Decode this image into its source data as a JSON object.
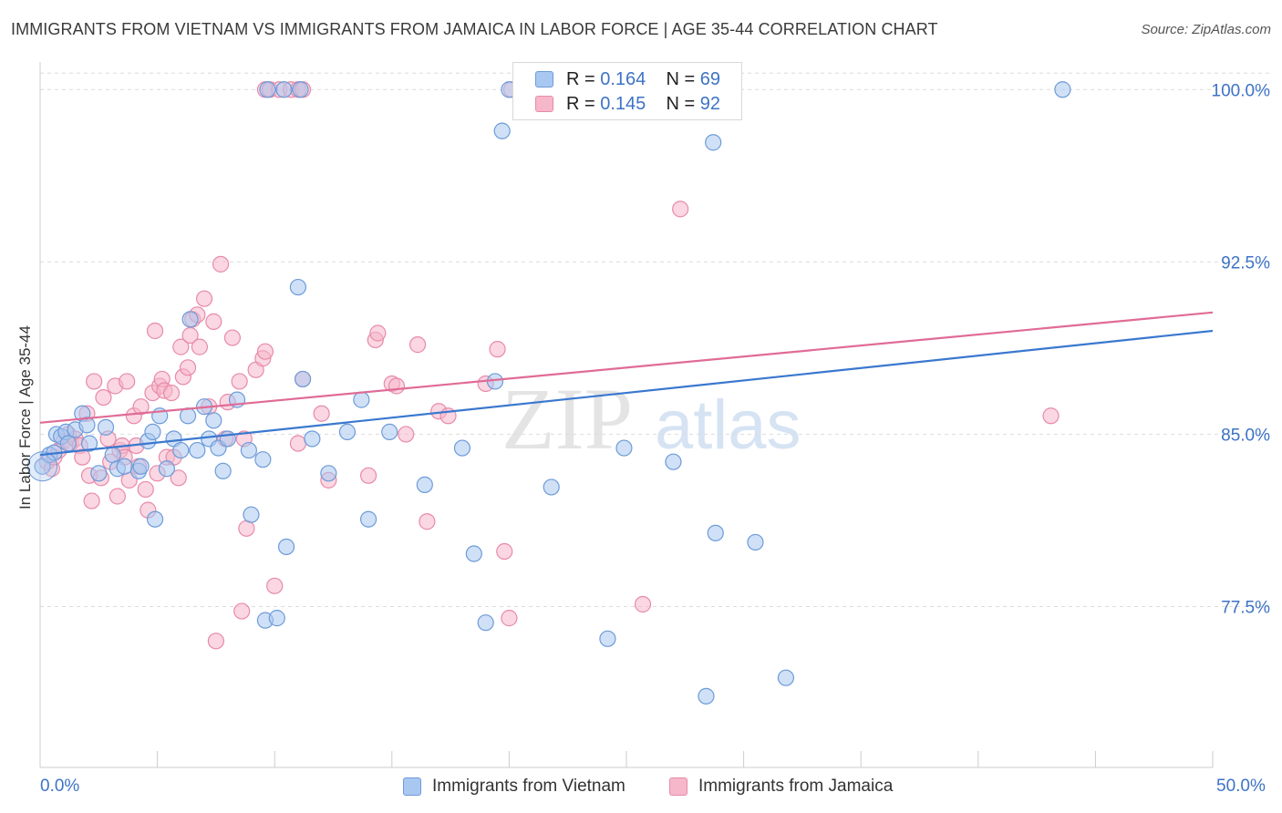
{
  "title": "IMMIGRANTS FROM VIETNAM VS IMMIGRANTS FROM JAMAICA IN LABOR FORCE | AGE 35-44 CORRELATION CHART",
  "source": "Source: ZipAtlas.com",
  "watermark": {
    "zip": "ZIP",
    "atlas": "atlas"
  },
  "legend_stats": [
    {
      "r_label": "R =",
      "r_value": "0.164",
      "n_label": "N =",
      "n_value": "69"
    },
    {
      "r_label": "R =",
      "r_value": "0.145",
      "n_label": "N =",
      "n_value": "92"
    }
  ],
  "x_tick_labels": {
    "left": "0.0%",
    "right": "50.0%"
  },
  "colors": {
    "vietnam_fill": "#a9c8f1",
    "vietnam_stroke": "#6d9bd8",
    "vietnam_line": "#3a78cf",
    "jamaica_fill": "#f6b7cb",
    "jamaica_stroke": "#e88aa9",
    "jamaica_line": "#e06b96",
    "tick_text": "#3d73c6",
    "grid": "#dcdcdc"
  },
  "chart_data": {
    "type": "scatter",
    "title": "IMMIGRANTS FROM VIETNAM VS IMMIGRANTS FROM JAMAICA IN LABOR FORCE | AGE 35-44 CORRELATION CHART",
    "xlabel": "",
    "ylabel": "In Labor Force | Age 35-44",
    "xlim": [
      0,
      50
    ],
    "ylim": [
      70.5,
      101.2
    ],
    "y_ticks": [
      {
        "value": 100.0,
        "label": "100.0%"
      },
      {
        "value": 92.5,
        "label": "92.5%"
      },
      {
        "value": 85.0,
        "label": "85.0%"
      },
      {
        "value": 77.5,
        "label": "77.5%"
      }
    ],
    "grid": "horizontal dashed",
    "legend_position": "top-center",
    "series": [
      {
        "name": "Immigrants from Vietnam",
        "color": "#a9c8f1",
        "trend": {
          "x": [
            0,
            50
          ],
          "y": [
            84.1,
            89.5
          ]
        },
        "points": [
          [
            0.1,
            83.6
          ],
          [
            0.4,
            84.1
          ],
          [
            0.6,
            84.2
          ],
          [
            0.7,
            85.0
          ],
          [
            0.9,
            84.9
          ],
          [
            1.1,
            85.1
          ],
          [
            1.2,
            84.6
          ],
          [
            1.5,
            85.2
          ],
          [
            1.8,
            85.9
          ],
          [
            2.0,
            85.4
          ],
          [
            2.1,
            84.6
          ],
          [
            2.5,
            83.3
          ],
          [
            2.8,
            85.3
          ],
          [
            3.1,
            84.1
          ],
          [
            3.3,
            83.5
          ],
          [
            3.6,
            83.6
          ],
          [
            4.2,
            83.4
          ],
          [
            4.3,
            83.6
          ],
          [
            4.6,
            84.7
          ],
          [
            4.8,
            85.1
          ],
          [
            4.9,
            81.3
          ],
          [
            5.1,
            85.8
          ],
          [
            5.4,
            83.5
          ],
          [
            5.7,
            84.8
          ],
          [
            6.0,
            84.3
          ],
          [
            6.3,
            85.8
          ],
          [
            6.4,
            90.0
          ],
          [
            6.7,
            84.3
          ],
          [
            7.0,
            86.2
          ],
          [
            7.2,
            84.8
          ],
          [
            7.4,
            85.6
          ],
          [
            7.6,
            84.4
          ],
          [
            7.8,
            83.4
          ],
          [
            8.0,
            84.8
          ],
          [
            8.4,
            86.5
          ],
          [
            8.9,
            84.3
          ],
          [
            9.0,
            81.5
          ],
          [
            9.5,
            83.9
          ],
          [
            9.6,
            76.9
          ],
          [
            10.1,
            77.0
          ],
          [
            10.5,
            80.1
          ],
          [
            11.0,
            91.4
          ],
          [
            11.2,
            87.4
          ],
          [
            11.6,
            84.8
          ],
          [
            12.3,
            83.3
          ],
          [
            13.1,
            85.1
          ],
          [
            13.7,
            86.5
          ],
          [
            14.0,
            81.3
          ],
          [
            14.9,
            85.1
          ],
          [
            16.4,
            82.8
          ],
          [
            18.0,
            84.4
          ],
          [
            18.5,
            79.8
          ],
          [
            19.0,
            76.8
          ],
          [
            19.4,
            87.3
          ],
          [
            19.7,
            98.2
          ],
          [
            21.8,
            82.7
          ],
          [
            24.2,
            76.1
          ],
          [
            24.9,
            84.4
          ],
          [
            27.0,
            83.8
          ],
          [
            28.7,
            97.7
          ],
          [
            28.8,
            80.7
          ],
          [
            30.5,
            80.3
          ],
          [
            31.8,
            74.4
          ],
          [
            28.4,
            73.6
          ],
          [
            9.7,
            100.0
          ],
          [
            10.4,
            100.0
          ],
          [
            11.1,
            100.0
          ],
          [
            20.0,
            100.0
          ],
          [
            43.6,
            100.0
          ]
        ]
      },
      {
        "name": "Immigrants from Jamaica",
        "color": "#f6b7cb",
        "trend": {
          "x": [
            0,
            50
          ],
          "y": [
            85.5,
            90.3
          ]
        },
        "points": [
          [
            0.3,
            83.8
          ],
          [
            0.5,
            83.5
          ],
          [
            0.6,
            84.0
          ],
          [
            0.8,
            84.3
          ],
          [
            1.0,
            84.7
          ],
          [
            1.2,
            85.0
          ],
          [
            1.3,
            84.6
          ],
          [
            1.5,
            84.8
          ],
          [
            1.7,
            84.5
          ],
          [
            1.8,
            84.0
          ],
          [
            2.0,
            85.9
          ],
          [
            2.1,
            83.2
          ],
          [
            2.2,
            82.1
          ],
          [
            2.3,
            87.3
          ],
          [
            2.6,
            83.1
          ],
          [
            2.7,
            86.6
          ],
          [
            2.9,
            84.8
          ],
          [
            3.0,
            83.8
          ],
          [
            3.2,
            87.1
          ],
          [
            3.3,
            82.3
          ],
          [
            3.4,
            84.3
          ],
          [
            3.5,
            84.5
          ],
          [
            3.6,
            84.0
          ],
          [
            3.7,
            87.3
          ],
          [
            3.8,
            83.0
          ],
          [
            4.0,
            85.8
          ],
          [
            4.1,
            84.5
          ],
          [
            4.2,
            83.6
          ],
          [
            4.3,
            86.2
          ],
          [
            4.5,
            82.6
          ],
          [
            4.6,
            81.7
          ],
          [
            4.8,
            86.8
          ],
          [
            4.9,
            89.5
          ],
          [
            5.0,
            83.3
          ],
          [
            5.1,
            87.1
          ],
          [
            5.2,
            87.4
          ],
          [
            5.3,
            86.9
          ],
          [
            5.4,
            84.0
          ],
          [
            5.6,
            86.8
          ],
          [
            5.7,
            84.0
          ],
          [
            5.9,
            83.1
          ],
          [
            6.0,
            88.8
          ],
          [
            6.1,
            87.5
          ],
          [
            6.3,
            87.9
          ],
          [
            6.4,
            89.3
          ],
          [
            6.5,
            90.0
          ],
          [
            6.7,
            90.2
          ],
          [
            6.8,
            88.8
          ],
          [
            7.0,
            90.9
          ],
          [
            7.2,
            86.2
          ],
          [
            7.4,
            89.9
          ],
          [
            7.5,
            76.0
          ],
          [
            7.7,
            92.4
          ],
          [
            7.9,
            84.8
          ],
          [
            8.0,
            86.4
          ],
          [
            8.2,
            89.2
          ],
          [
            8.5,
            87.3
          ],
          [
            8.6,
            77.3
          ],
          [
            8.7,
            84.8
          ],
          [
            8.8,
            80.9
          ],
          [
            9.2,
            87.8
          ],
          [
            9.5,
            88.3
          ],
          [
            9.6,
            88.6
          ],
          [
            10.0,
            78.4
          ],
          [
            11.0,
            84.6
          ],
          [
            11.2,
            87.4
          ],
          [
            12.0,
            85.9
          ],
          [
            12.3,
            83.0
          ],
          [
            14.0,
            83.2
          ],
          [
            14.3,
            89.1
          ],
          [
            14.4,
            89.4
          ],
          [
            15.0,
            87.2
          ],
          [
            15.2,
            87.1
          ],
          [
            15.6,
            85.0
          ],
          [
            16.1,
            88.9
          ],
          [
            16.5,
            81.2
          ],
          [
            17.0,
            86.0
          ],
          [
            17.4,
            85.8
          ],
          [
            19.0,
            87.2
          ],
          [
            19.5,
            88.7
          ],
          [
            19.8,
            79.9
          ],
          [
            20.0,
            77.0
          ],
          [
            25.7,
            77.6
          ],
          [
            27.3,
            94.8
          ],
          [
            43.1,
            85.8
          ],
          [
            9.6,
            100.0
          ],
          [
            9.8,
            100.0
          ],
          [
            10.2,
            100.0
          ],
          [
            10.7,
            100.0
          ],
          [
            11.0,
            100.0
          ],
          [
            20.1,
            100.0
          ],
          [
            11.2,
            100.0
          ]
        ]
      }
    ]
  },
  "legend_bottom": [
    "Immigrants from Vietnam",
    "Immigrants from Jamaica"
  ]
}
